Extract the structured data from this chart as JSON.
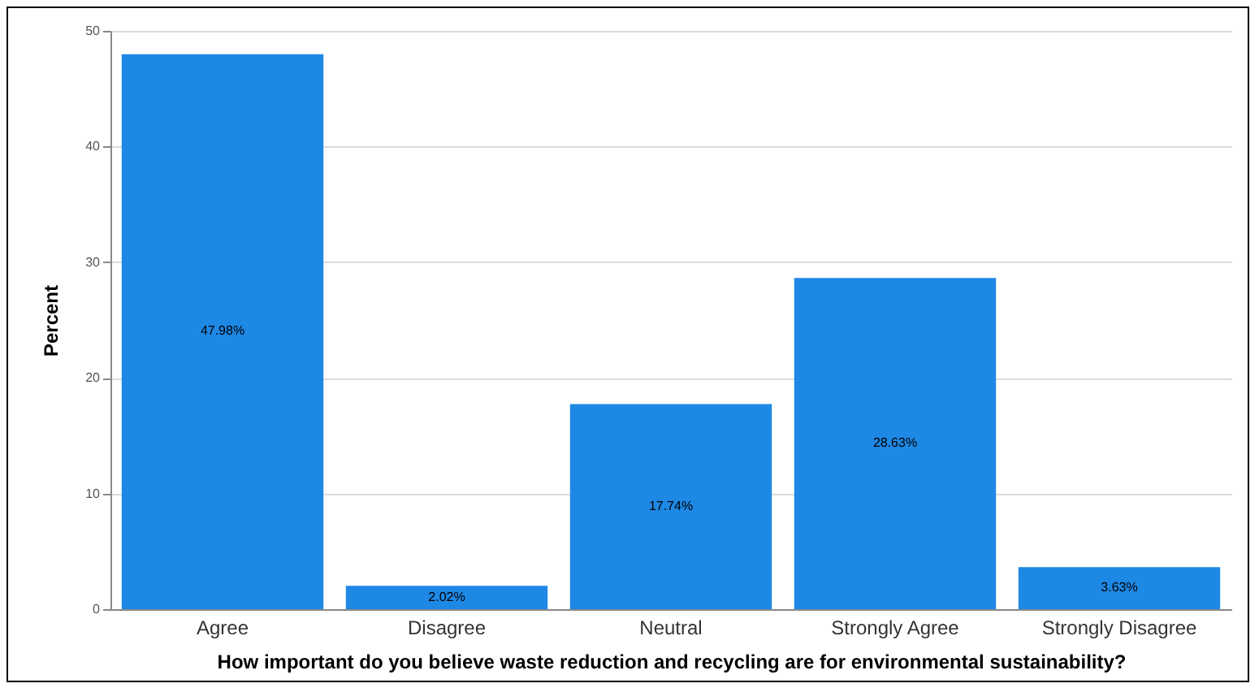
{
  "chart_data": {
    "type": "bar",
    "xlabel": "How important do you believe waste reduction and recycling are for environmental sustainability?",
    "ylabel": "Percent",
    "categories": [
      "Agree",
      "Disagree",
      "Neutral",
      "Strongly Agree",
      "Strongly Disagree"
    ],
    "values": [
      47.98,
      2.02,
      17.74,
      28.63,
      3.63
    ],
    "value_labels": [
      "47.98%",
      "2.02%",
      "17.74%",
      "28.63%",
      "3.63%"
    ],
    "color": "#1e88e5",
    "ylim": [
      0,
      50
    ],
    "yticks": [
      0,
      10,
      20,
      30,
      40,
      50
    ],
    "grid": "y"
  }
}
